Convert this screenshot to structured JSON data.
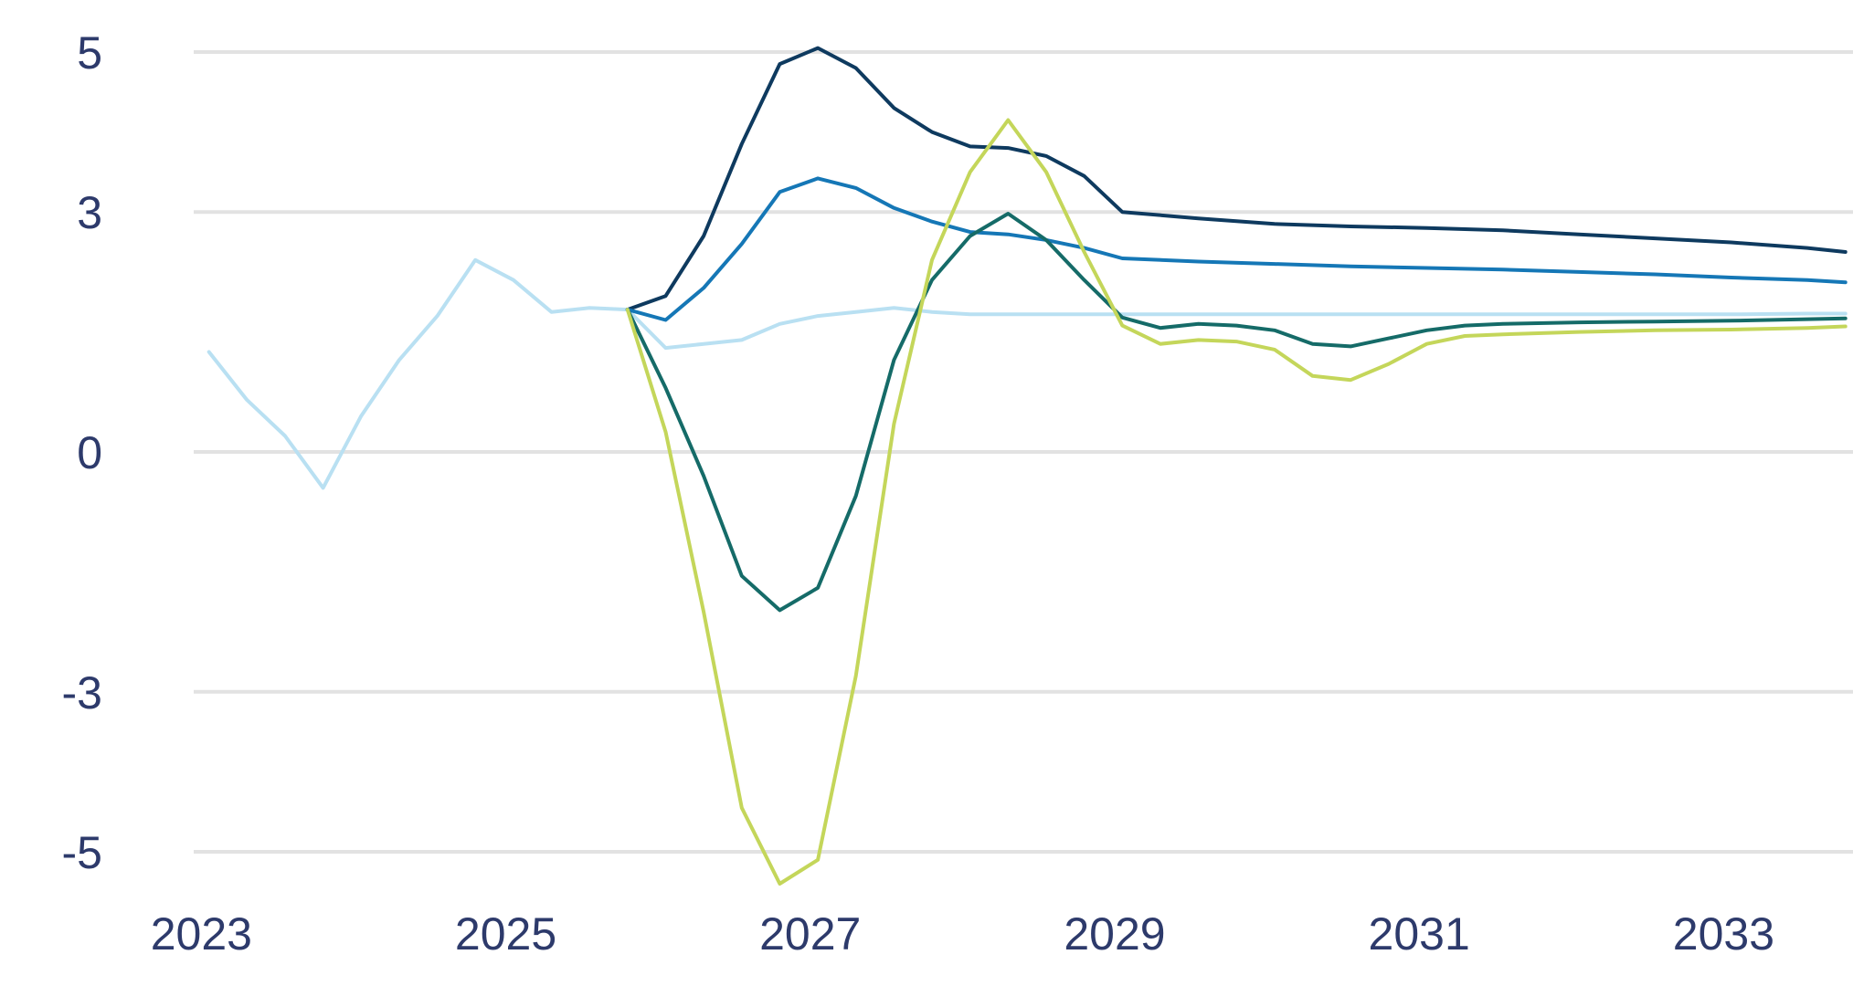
{
  "chart_data": {
    "type": "line",
    "title": "",
    "xlabel": "",
    "ylabel": "",
    "xlim": [
      2022.95,
      2033.85
    ],
    "ylim": [
      -5,
      5
    ],
    "grid": true,
    "legend": "none",
    "y_ticks": [
      {
        "value": 5,
        "label": "5"
      },
      {
        "value": 3,
        "label": "3"
      },
      {
        "value": 0,
        "label": "0"
      },
      {
        "value": -3,
        "label": "-3"
      },
      {
        "value": -5,
        "label": "-5"
      }
    ],
    "x_ticks": [
      {
        "value": 2023,
        "label": "2023"
      },
      {
        "value": 2025,
        "label": "2025"
      },
      {
        "value": 2027,
        "label": "2027"
      },
      {
        "value": 2029,
        "label": "2029"
      },
      {
        "value": 2031,
        "label": "2031"
      },
      {
        "value": 2033,
        "label": "2033"
      }
    ],
    "series": [
      {
        "name": "light-blue",
        "color": "#b9e0f2",
        "x": [
          2023.05,
          2023.3,
          2023.55,
          2023.8,
          2024.05,
          2024.3,
          2024.55,
          2024.8,
          2025.05,
          2025.3,
          2025.55,
          2025.8,
          2026.05,
          2026.3,
          2026.55,
          2026.8,
          2027.05,
          2027.3,
          2027.55,
          2027.8,
          2028.05,
          2028.3,
          2028.55,
          2028.8,
          2029.05,
          2029.55,
          2030.05,
          2030.55,
          2031.05,
          2031.55,
          2032.05,
          2032.55,
          2033.05,
          2033.55,
          2033.8
        ],
        "values": [
          1.25,
          0.65,
          0.2,
          -0.45,
          0.45,
          1.15,
          1.7,
          2.4,
          2.15,
          1.75,
          1.8,
          1.78,
          1.3,
          1.35,
          1.4,
          1.6,
          1.7,
          1.75,
          1.8,
          1.75,
          1.72,
          1.72,
          1.72,
          1.72,
          1.72,
          1.72,
          1.72,
          1.72,
          1.72,
          1.72,
          1.72,
          1.72,
          1.72,
          1.73,
          1.73
        ]
      },
      {
        "name": "navy",
        "color": "#0e3a5f",
        "x": [
          2025.8,
          2026.05,
          2026.3,
          2026.55,
          2026.8,
          2027.05,
          2027.3,
          2027.55,
          2027.8,
          2028.05,
          2028.3,
          2028.55,
          2028.8,
          2029.05,
          2029.55,
          2030.05,
          2030.55,
          2031.05,
          2031.55,
          2032.05,
          2032.55,
          2033.05,
          2033.55,
          2033.8
        ],
        "values": [
          1.78,
          1.95,
          2.7,
          3.85,
          4.85,
          5.05,
          4.8,
          4.3,
          4.0,
          3.82,
          3.8,
          3.7,
          3.45,
          3.0,
          2.92,
          2.85,
          2.82,
          2.8,
          2.77,
          2.72,
          2.67,
          2.62,
          2.55,
          2.5
        ]
      },
      {
        "name": "medium-blue",
        "color": "#1577b6",
        "x": [
          2025.8,
          2026.05,
          2026.3,
          2026.55,
          2026.8,
          2027.05,
          2027.3,
          2027.55,
          2027.8,
          2028.05,
          2028.3,
          2028.55,
          2028.8,
          2029.05,
          2029.55,
          2030.05,
          2030.55,
          2031.05,
          2031.55,
          2032.05,
          2032.55,
          2033.05,
          2033.55,
          2033.8
        ],
        "values": [
          1.78,
          1.65,
          2.05,
          2.6,
          3.25,
          3.42,
          3.3,
          3.05,
          2.88,
          2.75,
          2.72,
          2.65,
          2.55,
          2.42,
          2.38,
          2.35,
          2.32,
          2.3,
          2.28,
          2.25,
          2.22,
          2.18,
          2.15,
          2.12
        ]
      },
      {
        "name": "dark-teal",
        "color": "#156b68",
        "x": [
          2025.8,
          2026.05,
          2026.3,
          2026.55,
          2026.8,
          2027.05,
          2027.3,
          2027.55,
          2027.8,
          2028.05,
          2028.3,
          2028.55,
          2028.8,
          2029.05,
          2029.3,
          2029.55,
          2029.8,
          2030.05,
          2030.3,
          2030.55,
          2030.8,
          2031.05,
          2031.3,
          2031.55,
          2032.05,
          2032.55,
          2033.05,
          2033.55,
          2033.8
        ],
        "values": [
          1.78,
          0.8,
          -0.3,
          -1.55,
          -1.98,
          -1.7,
          -0.55,
          1.15,
          2.15,
          2.7,
          2.98,
          2.65,
          2.15,
          1.68,
          1.55,
          1.6,
          1.58,
          1.52,
          1.35,
          1.32,
          1.42,
          1.52,
          1.58,
          1.6,
          1.62,
          1.63,
          1.64,
          1.66,
          1.67
        ]
      },
      {
        "name": "lime",
        "color": "#c4d65a",
        "x": [
          2025.8,
          2026.05,
          2026.3,
          2026.55,
          2026.8,
          2027.05,
          2027.3,
          2027.55,
          2027.8,
          2028.05,
          2028.3,
          2028.55,
          2028.8,
          2029.05,
          2029.3,
          2029.55,
          2029.8,
          2030.05,
          2030.3,
          2030.55,
          2030.8,
          2031.05,
          2031.3,
          2031.55,
          2032.05,
          2032.55,
          2033.05,
          2033.55,
          2033.8
        ],
        "values": [
          1.78,
          0.25,
          -2.0,
          -4.45,
          -5.4,
          -5.1,
          -2.8,
          0.35,
          2.4,
          3.5,
          4.15,
          3.5,
          2.5,
          1.58,
          1.35,
          1.4,
          1.38,
          1.28,
          0.95,
          0.9,
          1.1,
          1.35,
          1.45,
          1.47,
          1.5,
          1.52,
          1.53,
          1.55,
          1.57
        ]
      }
    ]
  }
}
